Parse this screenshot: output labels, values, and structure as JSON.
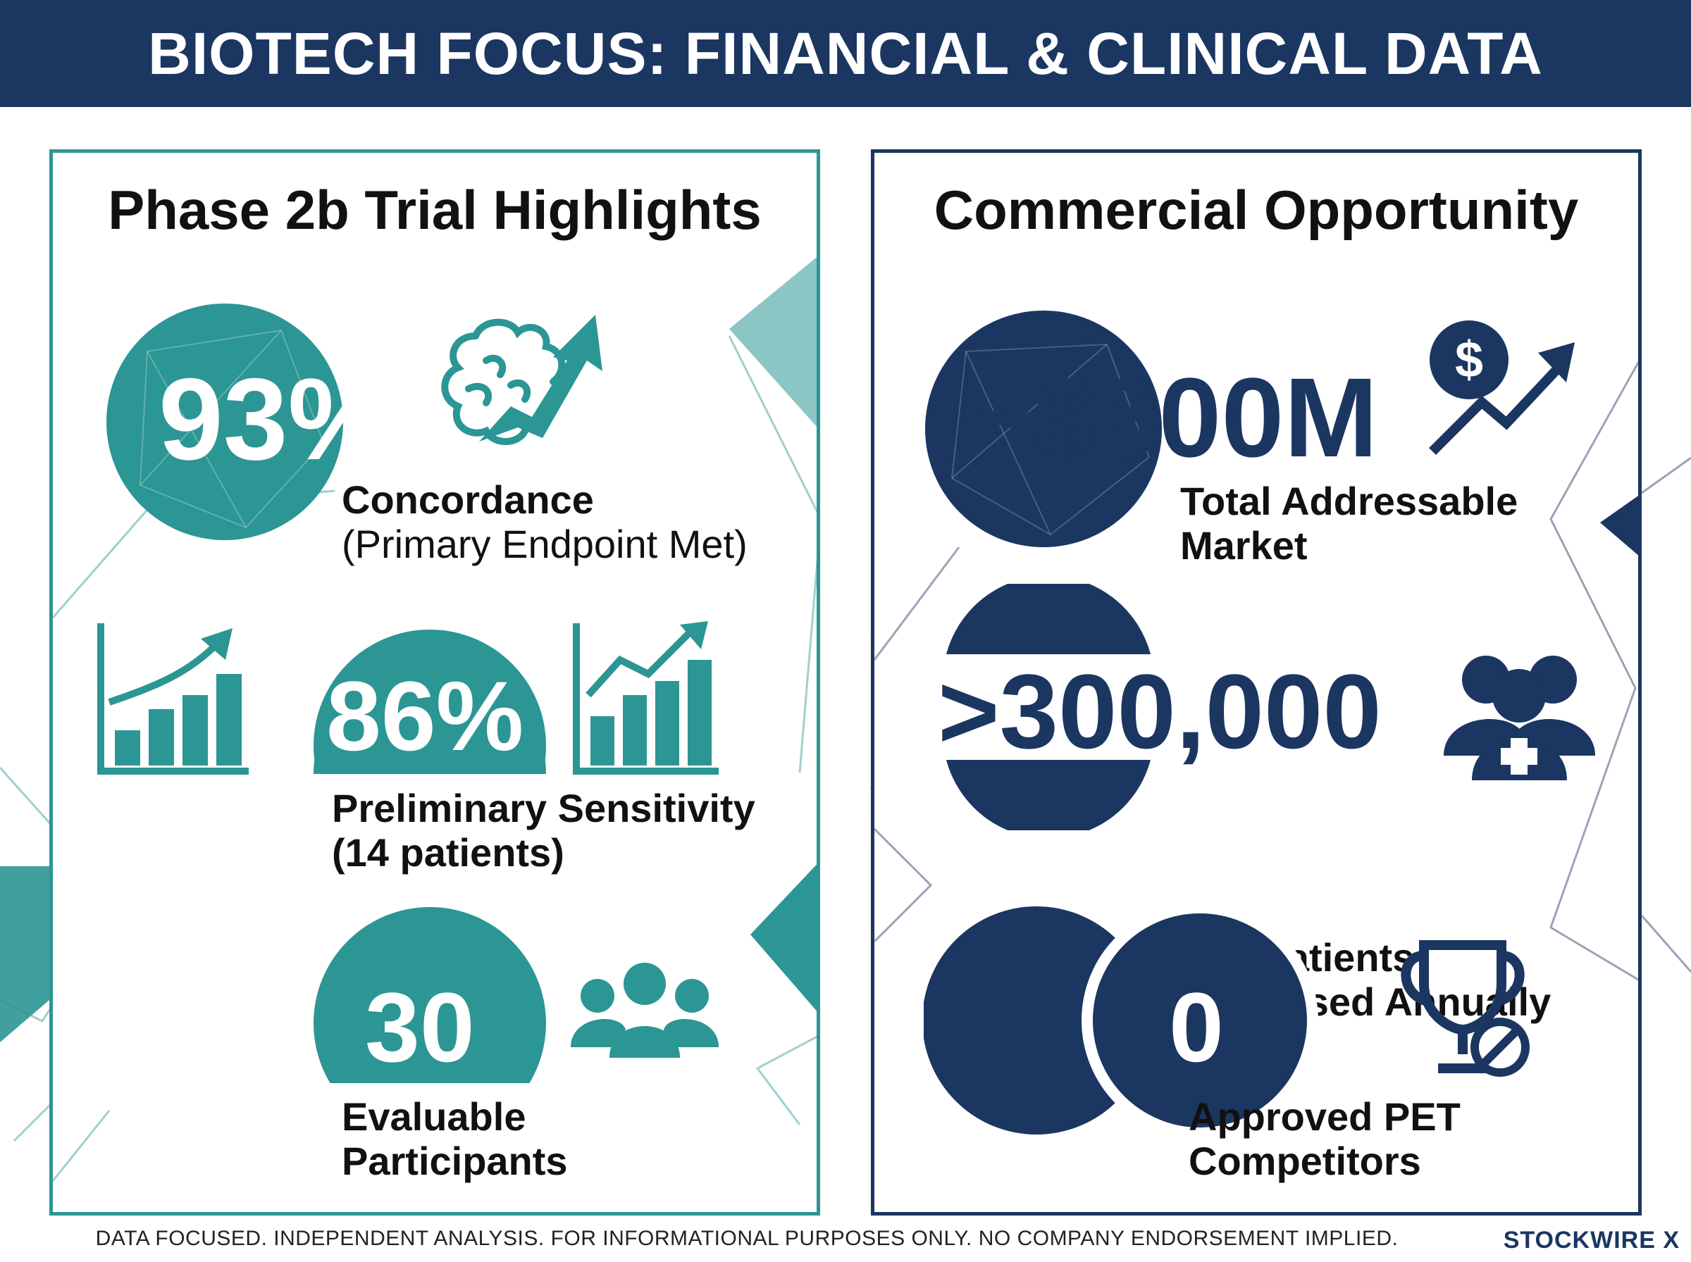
{
  "header": {
    "title": "BIOTECH FOCUS: FINANCIAL & CLINICAL DATA"
  },
  "colors": {
    "teal": "#2b9694",
    "navy": "#1b3661",
    "text": "#111111"
  },
  "left_panel": {
    "title": "Phase 2b Trial Highlights",
    "stats": [
      {
        "value": "93%",
        "label_bold": "Concordance",
        "label_normal": "(Primary Endpoint Met)",
        "icon": "brain-growth-icon"
      },
      {
        "value": "86%",
        "label_line1": "Preliminary Sensitivity",
        "label_line2": "(14 patients)",
        "icon": "bar-chart-growth-icon"
      },
      {
        "value": "30",
        "label_line1": "Evaluable",
        "label_line2": "Participants",
        "icon": "people-group-icon"
      }
    ]
  },
  "right_panel": {
    "title": "Commercial Opportunity",
    "stats": [
      {
        "value": "~$600M",
        "label_line1": "Total Addressable",
        "label_line2": "Market",
        "icon": "dollar-growth-icon"
      },
      {
        "value": ">300,000",
        "label_line1": "U.S. Patients",
        "label_line2": "Diagnosed Annually",
        "icon": "patients-medical-icon"
      },
      {
        "value": "0",
        "label_line1": "Approved PET",
        "label_line2": "Competitors",
        "icon": "trophy-prohibited-icon"
      }
    ]
  },
  "footer": {
    "disclaimer": "DATA FOCUSED. INDEPENDENT ANALYSIS. FOR INFORMATIONAL PURPOSES ONLY. NO COMPANY ENDORSEMENT IMPLIED.",
    "brand": "STOCKWIRE X"
  }
}
